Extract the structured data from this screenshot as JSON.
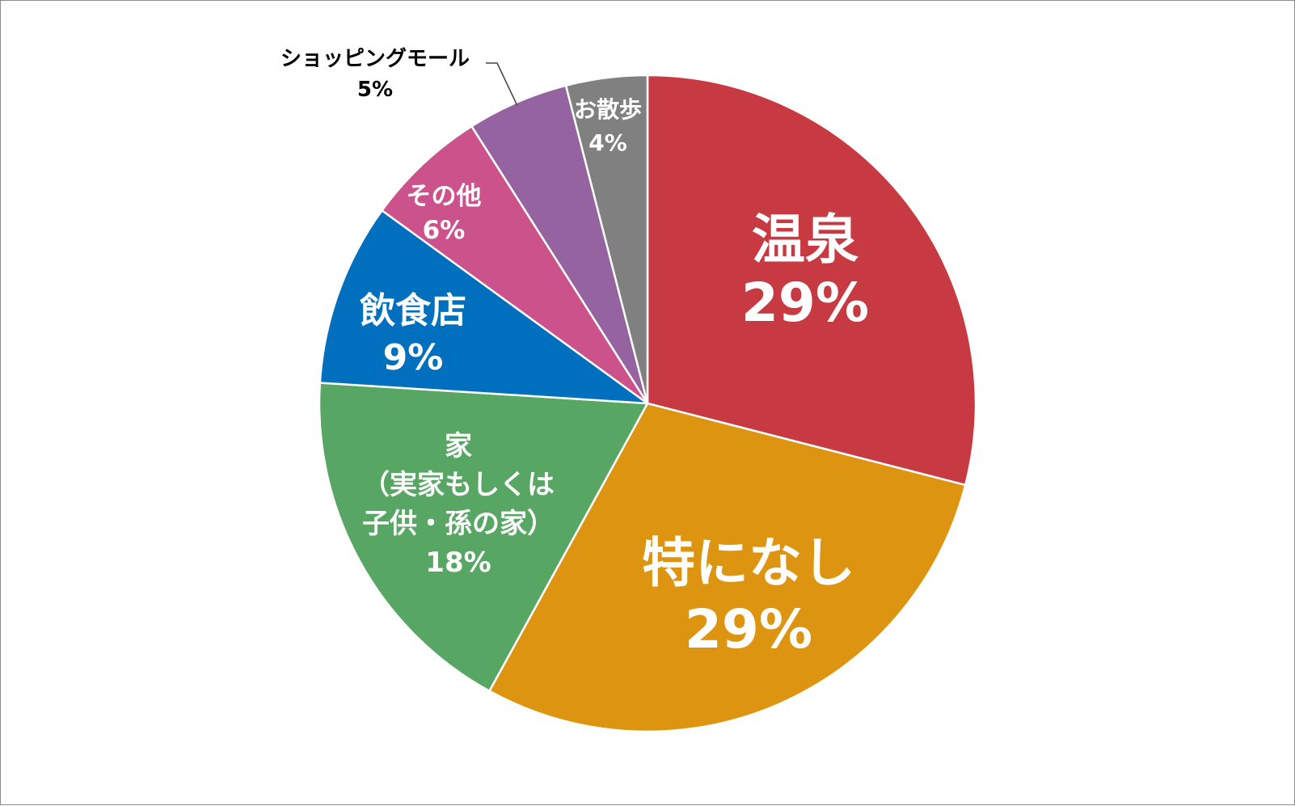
{
  "chart_data": {
    "type": "pie",
    "title": "",
    "start_angle_deg": 0,
    "direction": "clockwise",
    "legend": "none",
    "slices": [
      {
        "key": "onsen",
        "label": [
          "温泉"
        ],
        "value": 29,
        "display": "29%",
        "color": "#C73A42",
        "label_color": "#FFFFFF"
      },
      {
        "key": "tokuninashi",
        "label": [
          "特になし"
        ],
        "value": 29,
        "display": "29%",
        "color": "#DD9511",
        "label_color": "#FFFFFF"
      },
      {
        "key": "ie",
        "label": [
          "家",
          "（実家もしくは",
          "子供・孫の家）"
        ],
        "value": 18,
        "display": "18%",
        "color": "#58A663",
        "label_color": "#FFFFFF"
      },
      {
        "key": "inshokuten",
        "label": [
          "飲食店"
        ],
        "value": 9,
        "display": "9%",
        "color": "#0070BE",
        "label_color": "#FFFFFF"
      },
      {
        "key": "sonota",
        "label": [
          "その他"
        ],
        "value": 6,
        "display": "6%",
        "color": "#CB528B",
        "label_color": "#FFFFFF"
      },
      {
        "key": "shopping",
        "label": [
          "ショッピングモール"
        ],
        "value": 5,
        "display": "5%",
        "color": "#9563A0",
        "label_color": "#000000"
      },
      {
        "key": "osanpo",
        "label": [
          "お散歩"
        ],
        "value": 4,
        "display": "4%",
        "color": "#808080",
        "label_color": "#FFFFFF"
      }
    ]
  }
}
